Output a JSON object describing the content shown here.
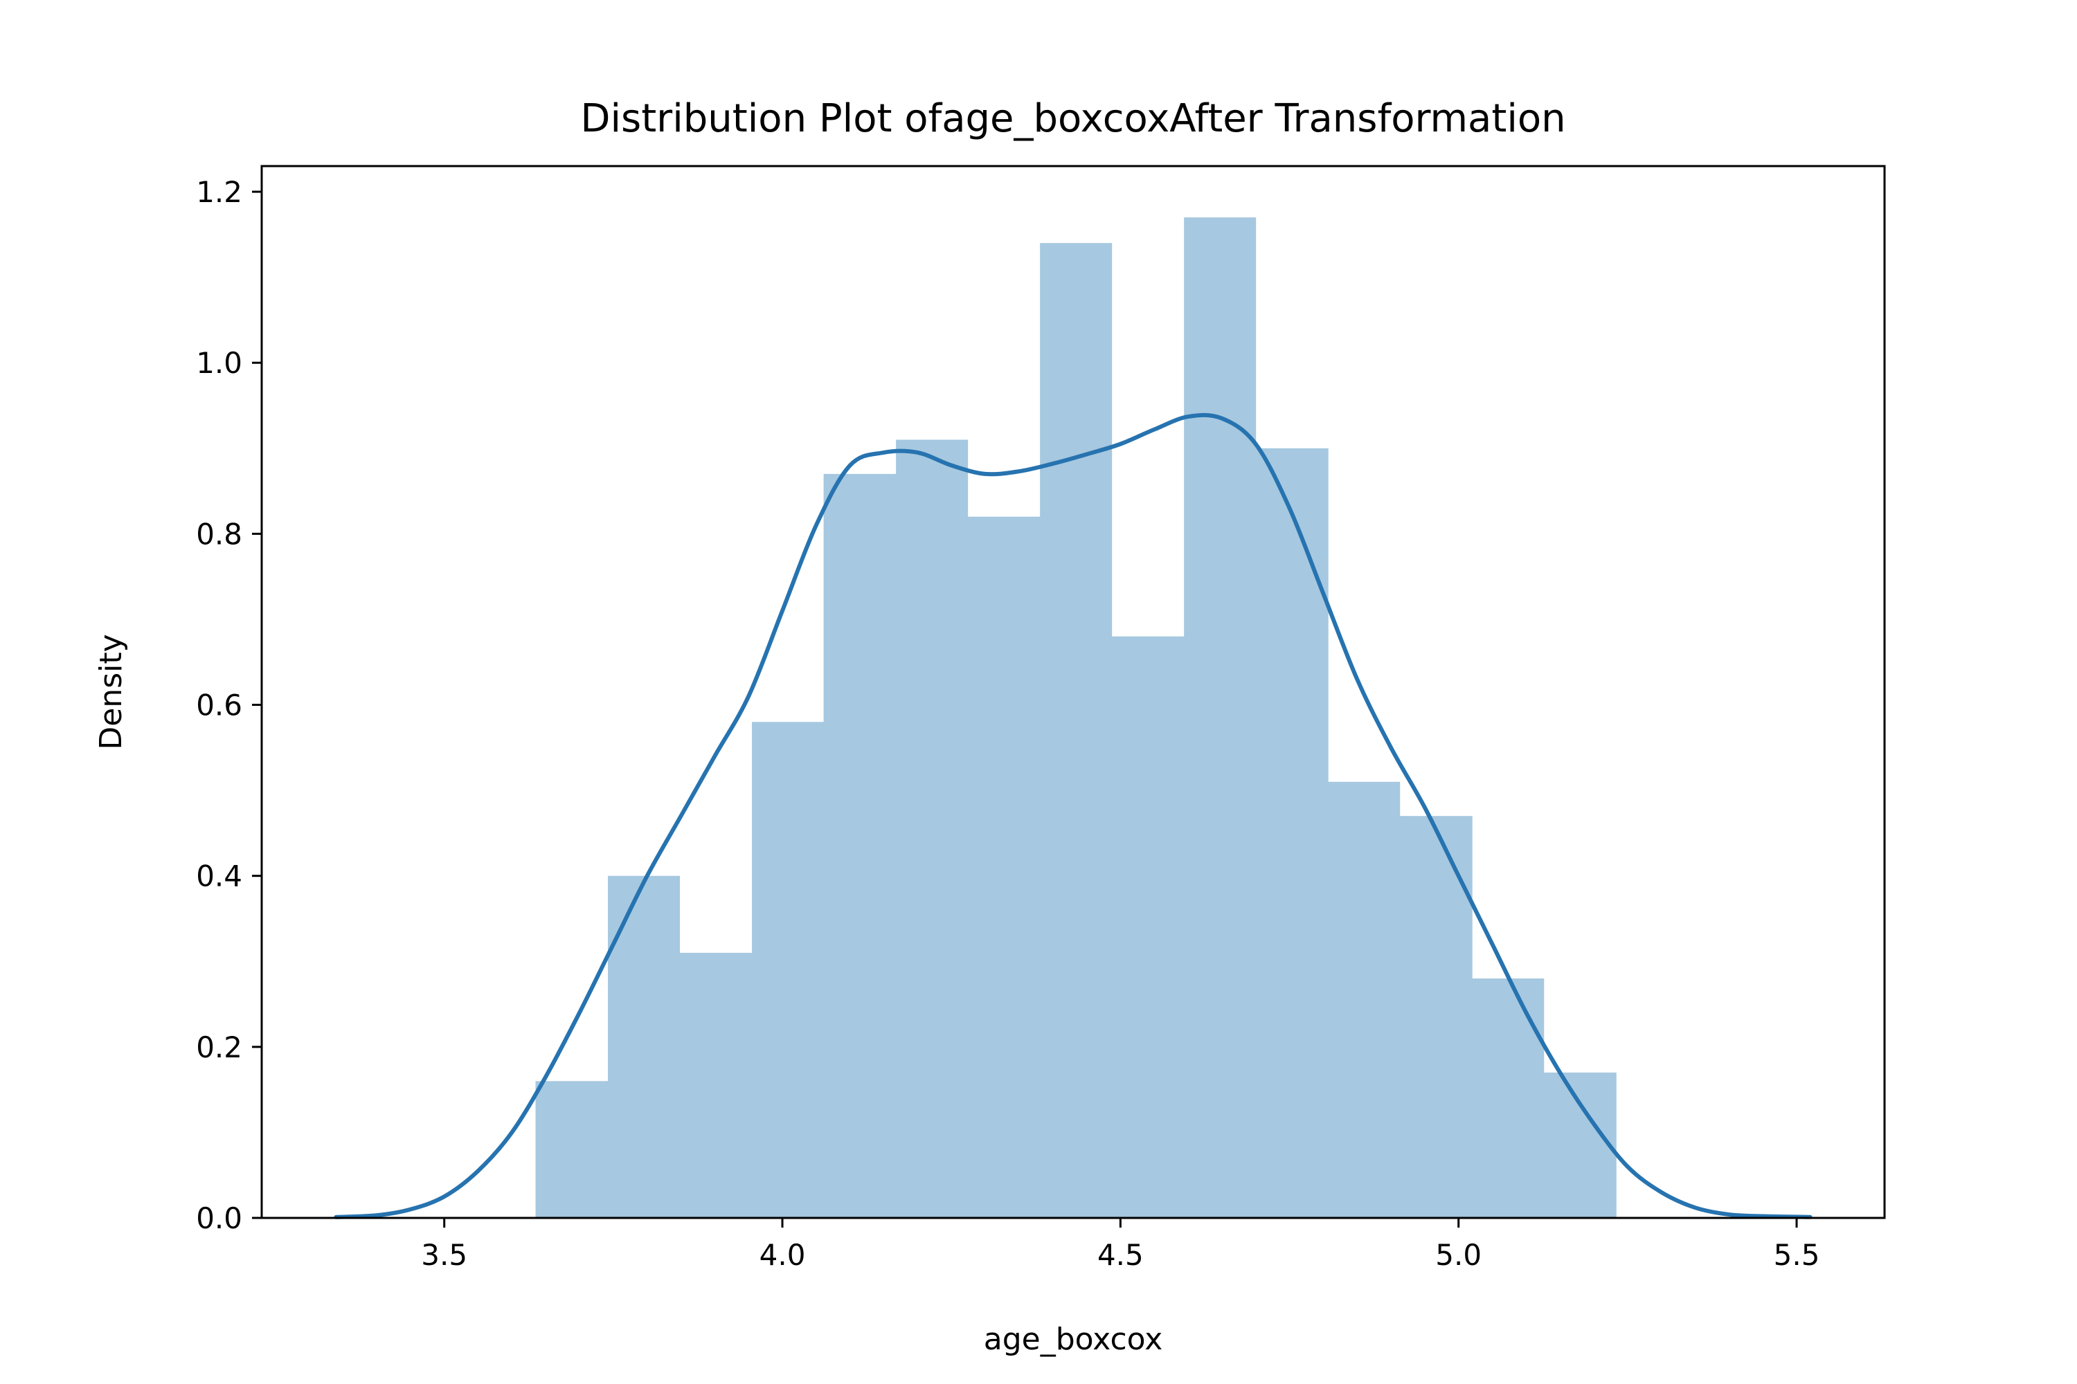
{
  "chart_data": {
    "type": "bar",
    "title": "Distribution Plot ofage_boxcoxAfter Transformation",
    "xlabel": "age_boxcox",
    "ylabel": "Density",
    "xlim": [
      3.23,
      5.63
    ],
    "ylim": [
      0.0,
      1.23
    ],
    "xticks": [
      3.5,
      4.0,
      4.5,
      5.0,
      5.5
    ],
    "yticks": [
      0.0,
      0.2,
      0.4,
      0.6,
      0.8,
      1.0,
      1.2
    ],
    "xtick_labels": [
      "3.5",
      "4.0",
      "4.5",
      "5.0",
      "5.5"
    ],
    "ytick_labels": [
      "0.0",
      "0.2",
      "0.4",
      "0.6",
      "0.8",
      "1.0",
      "1.2"
    ],
    "grid": false,
    "histogram": {
      "bin_edges": [
        3.635,
        3.742,
        3.848,
        3.955,
        4.061,
        4.168,
        4.274,
        4.381,
        4.487,
        4.594,
        4.7,
        4.807,
        4.913,
        5.02,
        5.126,
        5.233
      ],
      "values": [
        0.16,
        0.4,
        0.31,
        0.58,
        0.87,
        0.91,
        0.82,
        1.14,
        0.68,
        1.17,
        0.9,
        0.51,
        0.47,
        0.28,
        0.17
      ],
      "color": "#a6c8e0"
    },
    "kde": {
      "color": "#2673b0",
      "x": [
        3.34,
        3.4,
        3.45,
        3.5,
        3.55,
        3.6,
        3.65,
        3.7,
        3.75,
        3.8,
        3.85,
        3.9,
        3.95,
        4.0,
        4.05,
        4.1,
        4.15,
        4.2,
        4.25,
        4.3,
        4.35,
        4.4,
        4.45,
        4.5,
        4.55,
        4.6,
        4.65,
        4.7,
        4.75,
        4.8,
        4.85,
        4.9,
        4.95,
        5.0,
        5.05,
        5.1,
        5.15,
        5.2,
        5.25,
        5.3,
        5.35,
        5.4,
        5.45,
        5.52
      ],
      "y": [
        0.001,
        0.003,
        0.01,
        0.025,
        0.055,
        0.1,
        0.165,
        0.24,
        0.32,
        0.4,
        0.47,
        0.54,
        0.61,
        0.71,
        0.81,
        0.88,
        0.895,
        0.895,
        0.88,
        0.87,
        0.873,
        0.882,
        0.893,
        0.905,
        0.922,
        0.937,
        0.935,
        0.905,
        0.83,
        0.73,
        0.63,
        0.55,
        0.48,
        0.4,
        0.32,
        0.24,
        0.17,
        0.11,
        0.06,
        0.03,
        0.012,
        0.004,
        0.002,
        0.001
      ]
    }
  }
}
